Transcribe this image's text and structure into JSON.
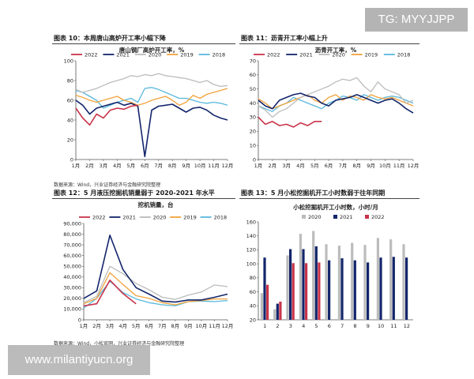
{
  "badge": "TG: MYYJJPP",
  "watermark": "www.milantiyucn.org",
  "colors": {
    "2022": "#c9344a",
    "2021": "#13256b",
    "2020": "#bcbcbc",
    "2019": "#f2a23a",
    "2018": "#58b8dd"
  },
  "panels": {
    "fig10_title": "图表 10：本周唐山高炉开工率小幅下降",
    "fig11_title": "图表 11：沥青开工率小幅上升",
    "fig12_title": "图表 12：5 月液压挖掘机销量弱于 2020-2021 年水平",
    "fig13_title": "图表 13：5 月小松挖掘机开工小时数弱于往年同期",
    "source_top": "数据来源：Wind，兴业证券经济与金融研究院整理",
    "source_bottom": "数据来源：Wind，小松官网，兴业证券经济与金融研究院整理"
  },
  "chart_data": [
    {
      "type": "line",
      "title": "唐山钢厂高炉开工率，%",
      "ylim": [
        0,
        100
      ],
      "yticks": [
        0,
        20,
        40,
        60,
        80,
        100
      ],
      "xticks": [
        "1月",
        "2月",
        "3月",
        "4月",
        "5月",
        "6月",
        "7月",
        "8月",
        "9月",
        "10月",
        "11月",
        "12月"
      ],
      "x": [
        1,
        1.5,
        2,
        2.5,
        3,
        3.5,
        4,
        4.5,
        5,
        5.5,
        6,
        6.5,
        7,
        7.5,
        8,
        8.5,
        9,
        9.5,
        10,
        10.5,
        11,
        11.5,
        12
      ],
      "series": [
        {
          "name": "2022",
          "values": [
            52,
            42,
            35,
            46,
            42,
            50,
            52,
            51,
            54,
            55,
            null,
            null,
            null,
            null,
            null,
            null,
            null,
            null,
            null,
            null,
            null,
            null,
            null
          ]
        },
        {
          "name": "2021",
          "values": [
            60,
            55,
            46,
            52,
            54,
            56,
            58,
            55,
            57,
            54,
            3,
            50,
            54,
            55,
            56,
            52,
            48,
            52,
            53,
            50,
            45,
            42,
            40
          ]
        },
        {
          "name": "2020",
          "values": [
            71,
            68,
            70,
            72,
            75,
            78,
            80,
            82,
            85,
            84,
            86,
            85,
            87,
            85,
            84,
            83,
            82,
            80,
            78,
            80,
            76,
            74,
            75
          ]
        },
        {
          "name": "2019",
          "values": [
            65,
            63,
            60,
            58,
            60,
            62,
            64,
            60,
            58,
            55,
            57,
            60,
            62,
            64,
            60,
            55,
            58,
            65,
            62,
            66,
            68,
            70,
            72
          ]
        },
        {
          "name": "2018",
          "values": [
            70,
            68,
            64,
            60,
            52,
            55,
            58,
            60,
            62,
            58,
            72,
            73,
            71,
            68,
            65,
            62,
            62,
            60,
            58,
            57,
            58,
            57,
            55
          ]
        }
      ]
    },
    {
      "type": "line",
      "title": "沥青开工率，%",
      "ylim": [
        0,
        70
      ],
      "yticks": [
        0,
        10,
        20,
        30,
        40,
        50,
        60,
        70
      ],
      "xticks": [
        "1月",
        "2月",
        "3月",
        "4月",
        "5月",
        "6月",
        "7月",
        "8月",
        "9月",
        "10月",
        "11月",
        "12月"
      ],
      "x": [
        1,
        1.5,
        2,
        2.5,
        3,
        3.5,
        4,
        4.5,
        5,
        5.5,
        6,
        6.5,
        7,
        7.5,
        8,
        8.5,
        9,
        9.5,
        10,
        10.5,
        11,
        11.5,
        12
      ],
      "series": [
        {
          "name": "2022",
          "values": [
            30,
            25,
            27,
            24,
            25,
            23,
            26,
            24,
            27,
            27,
            null,
            null,
            null,
            null,
            null,
            null,
            null,
            null,
            null,
            null,
            null,
            null,
            null
          ]
        },
        {
          "name": "2021",
          "values": [
            42,
            38,
            36,
            42,
            44,
            46,
            47,
            45,
            44,
            40,
            38,
            42,
            43,
            44,
            46,
            44,
            42,
            40,
            42,
            43,
            40,
            36,
            33
          ]
        },
        {
          "name": "2020",
          "values": [
            38,
            35,
            30,
            34,
            36,
            40,
            44,
            46,
            48,
            50,
            52,
            55,
            57,
            56,
            58,
            52,
            48,
            55,
            50,
            48,
            46,
            40,
            42
          ]
        },
        {
          "name": "2019",
          "values": [
            43,
            40,
            36,
            38,
            40,
            42,
            44,
            46,
            42,
            40,
            44,
            46,
            42,
            45,
            44,
            42,
            46,
            44,
            43,
            44,
            42,
            40,
            38
          ]
        },
        {
          "name": "2018",
          "values": [
            38,
            36,
            34,
            38,
            40,
            44,
            42,
            40,
            38,
            36,
            40,
            42,
            45,
            44,
            42,
            46,
            44,
            42,
            44,
            45,
            44,
            42,
            40
          ]
        }
      ]
    },
    {
      "type": "line",
      "title": "挖机销量，台",
      "ylim": [
        0,
        90000
      ],
      "yticks": [
        0,
        10000,
        20000,
        30000,
        40000,
        50000,
        60000,
        70000,
        80000,
        90000
      ],
      "ytick_labels": [
        "0",
        "10,000",
        "20,000",
        "30,000",
        "40,000",
        "50,000",
        "60,000",
        "70,000",
        "80,000",
        "90,000"
      ],
      "xticks": [
        "1月",
        "2月",
        "3月",
        "4月",
        "5月",
        "6月",
        "7月",
        "8月",
        "9月",
        "10月",
        "11月",
        "12月"
      ],
      "x": [
        1,
        2,
        3,
        4,
        5,
        6,
        7,
        8,
        9,
        10,
        11,
        12
      ],
      "series": [
        {
          "name": "2022",
          "values": [
            13000,
            15000,
            37000,
            24500,
            15000,
            null,
            null,
            null,
            null,
            null,
            null,
            null
          ]
        },
        {
          "name": "2021",
          "values": [
            20000,
            27000,
            79000,
            47000,
            30000,
            24000,
            17500,
            16500,
            18500,
            18500,
            21000,
            24000
          ]
        },
        {
          "name": "2020",
          "values": [
            16000,
            22000,
            50000,
            43000,
            34000,
            28000,
            21000,
            19000,
            23000,
            26000,
            32500,
            31000
          ]
        },
        {
          "name": "2019",
          "values": [
            15000,
            20000,
            44000,
            33000,
            22500,
            20000,
            16000,
            14000,
            17000,
            18000,
            19500,
            19500
          ]
        },
        {
          "name": "2018",
          "values": [
            11000,
            20000,
            36000,
            25500,
            19500,
            16000,
            14000,
            13000,
            17000,
            17500,
            17000,
            18000
          ]
        }
      ]
    },
    {
      "type": "bar",
      "title": "小松挖掘机开工小时数，小时/月",
      "ylim": [
        20,
        160
      ],
      "yticks": [
        20,
        40,
        60,
        80,
        100,
        120,
        140,
        160
      ],
      "categories": [
        "1",
        "2",
        "3",
        "4",
        "5",
        "6",
        "7",
        "8",
        "9",
        "10",
        "11",
        "12"
      ],
      "series": [
        {
          "name": "2020",
          "values": [
            58,
            35,
            112,
            143,
            147,
            128,
            126,
            130,
            127,
            137,
            135,
            128
          ]
        },
        {
          "name": "2021",
          "values": [
            109,
            43,
            121,
            121,
            125,
            105,
            108,
            105,
            102,
            109,
            110,
            109
          ]
        },
        {
          "name": "2022",
          "values": [
            70,
            46,
            101,
            101,
            102,
            null,
            null,
            null,
            null,
            null,
            null,
            null
          ]
        }
      ]
    }
  ]
}
